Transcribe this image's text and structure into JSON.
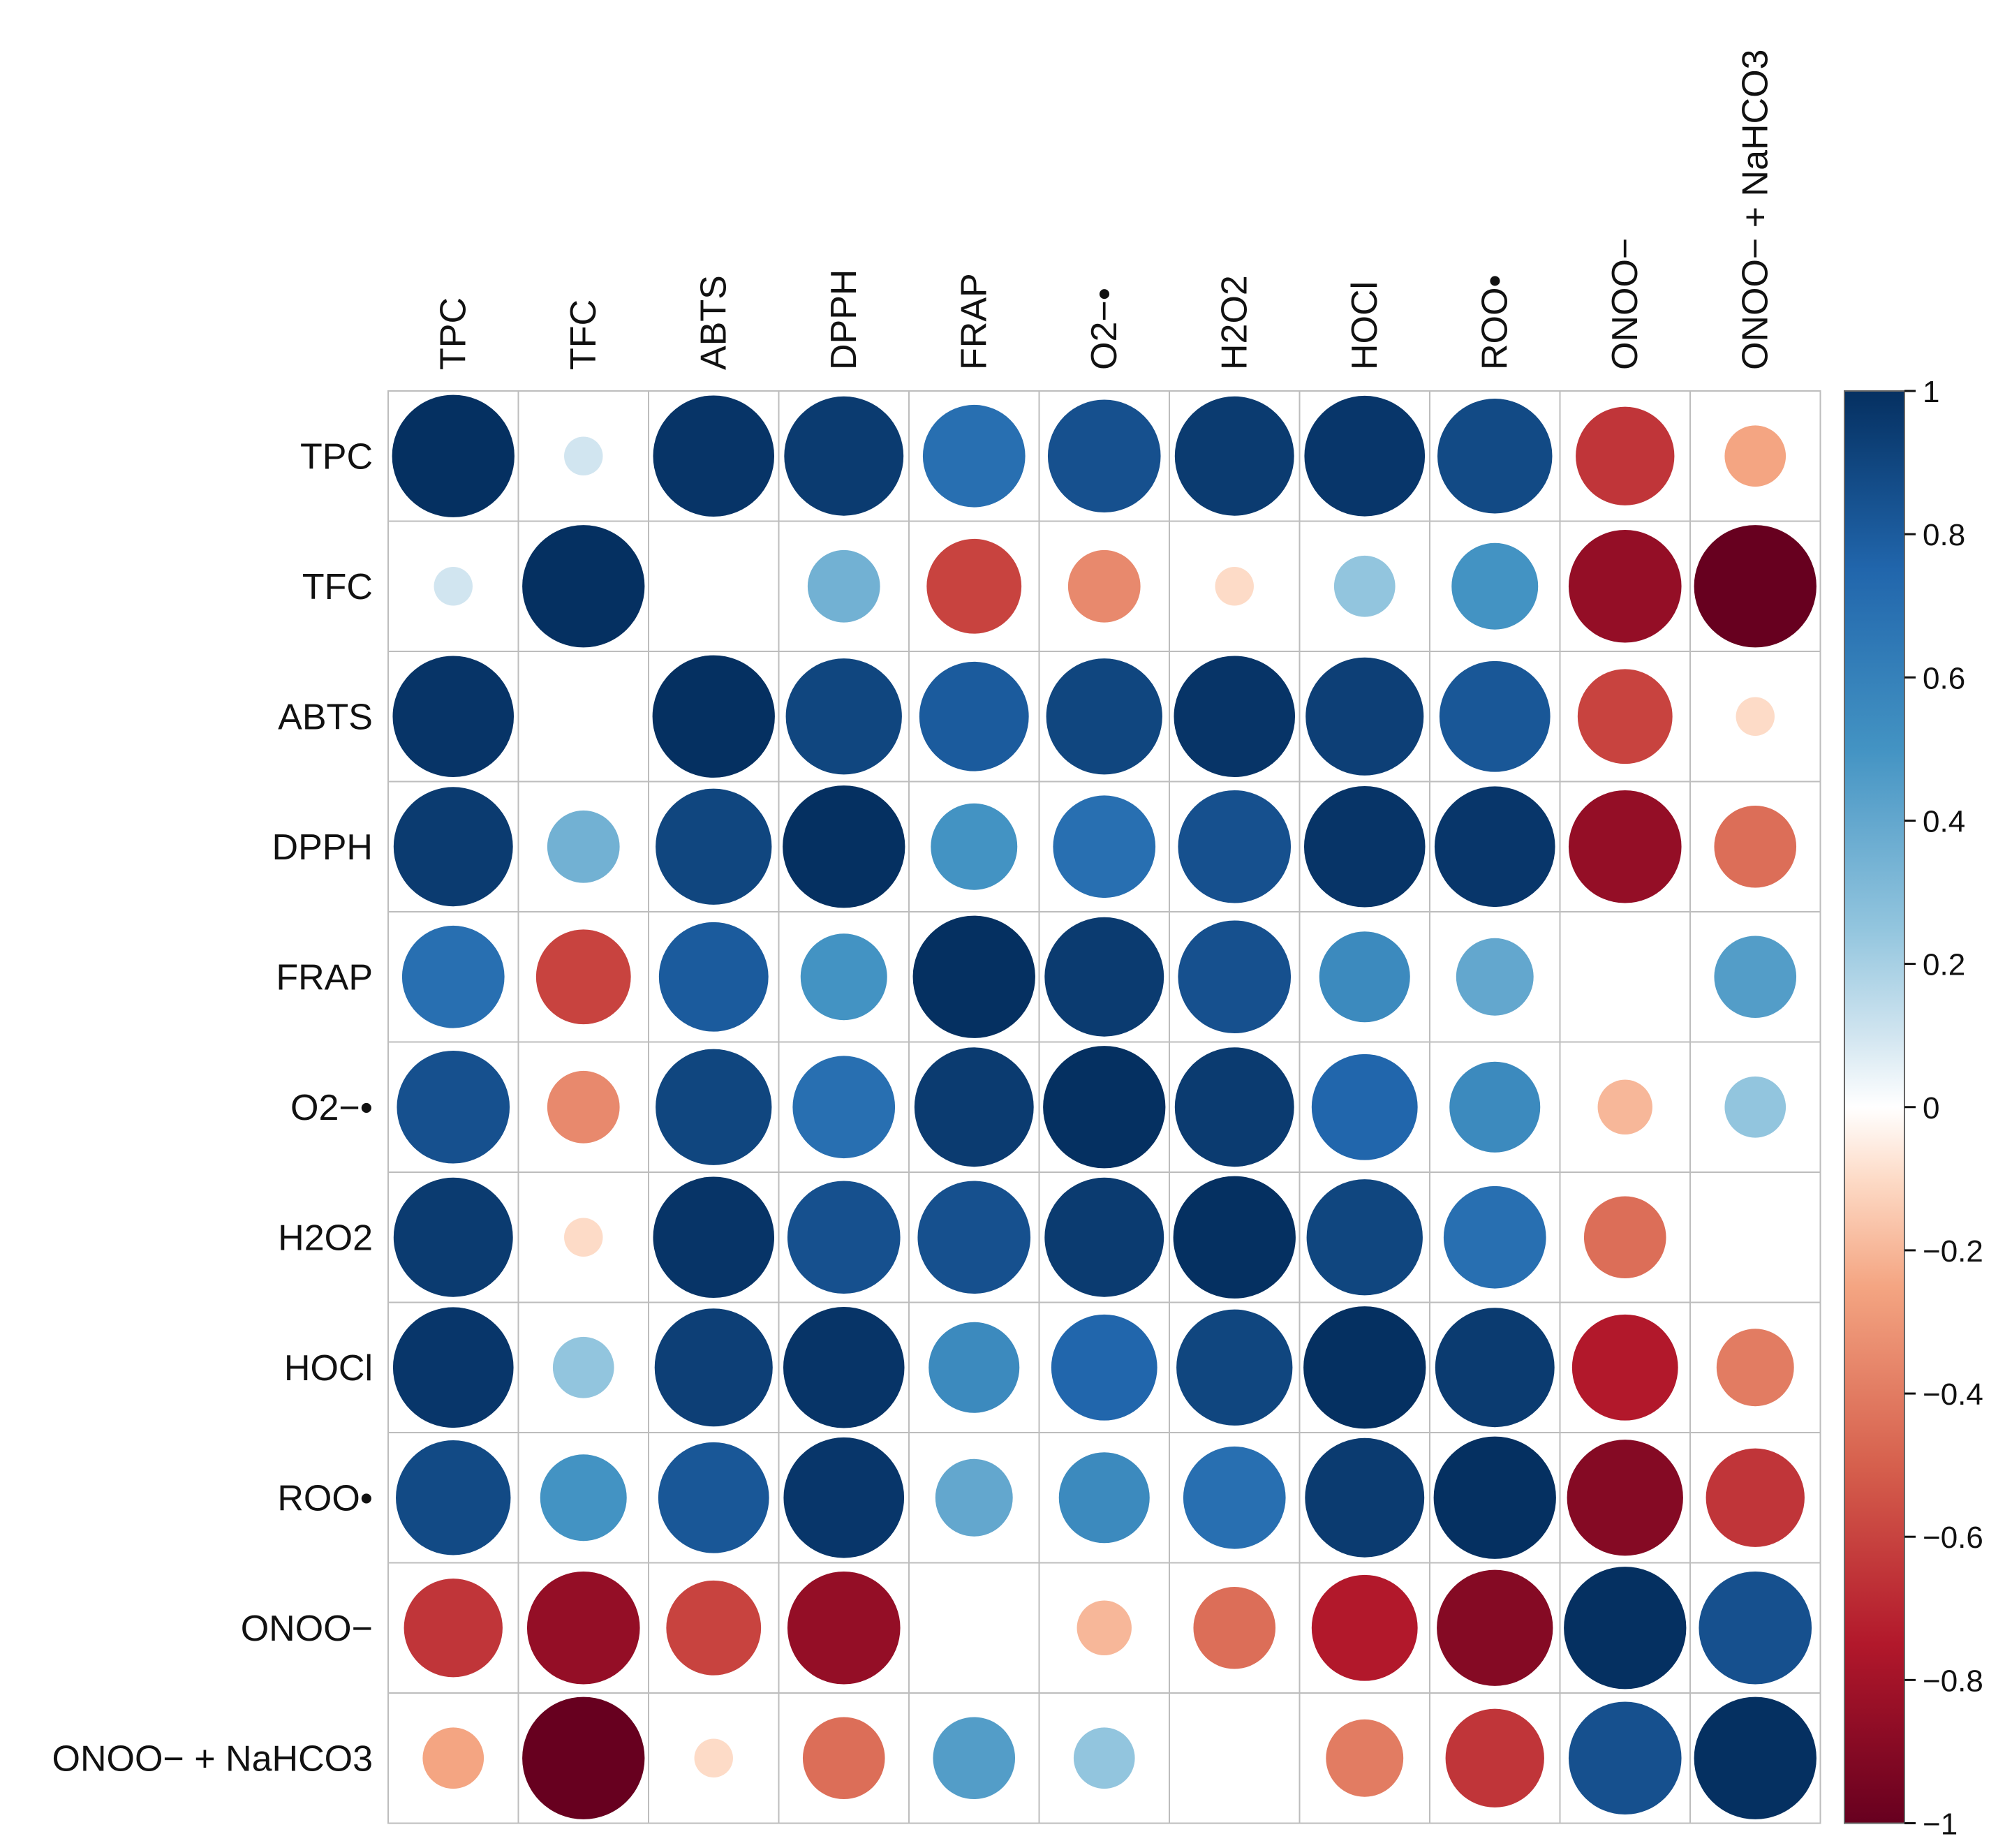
{
  "chart_data": {
    "type": "heatmap",
    "subtype": "correlation-circle-matrix",
    "title": "",
    "variables": [
      "TPC",
      "TFC",
      "ABTS",
      "DPPH",
      "FRAP",
      "O2−•",
      "H2O2",
      "HOCl",
      "ROO•",
      "ONOO−",
      "ONOO− + NaHCO3"
    ],
    "matrix": [
      [
        1.0,
        0.1,
        0.98,
        0.95,
        0.7,
        0.85,
        0.95,
        0.97,
        0.88,
        -0.65,
        -0.25
      ],
      [
        0.1,
        1.0,
        0.0,
        0.35,
        -0.6,
        -0.35,
        -0.1,
        0.25,
        0.5,
        -0.85,
        -1.0
      ],
      [
        0.98,
        0.0,
        1.0,
        0.9,
        0.8,
        0.9,
        0.98,
        0.93,
        0.82,
        -0.6,
        -0.1
      ],
      [
        0.95,
        0.35,
        0.9,
        1.0,
        0.5,
        0.7,
        0.85,
        0.98,
        0.97,
        -0.85,
        -0.45
      ],
      [
        0.7,
        -0.6,
        0.8,
        0.5,
        1.0,
        0.95,
        0.85,
        0.55,
        0.4,
        0.0,
        0.45
      ],
      [
        0.85,
        -0.35,
        0.9,
        0.7,
        0.95,
        1.0,
        0.95,
        0.75,
        0.55,
        -0.2,
        0.25
      ],
      [
        0.95,
        -0.1,
        0.98,
        0.85,
        0.85,
        0.95,
        1.0,
        0.9,
        0.7,
        -0.45,
        0.0
      ],
      [
        0.97,
        0.25,
        0.93,
        0.98,
        0.55,
        0.75,
        0.9,
        1.0,
        0.95,
        -0.75,
        -0.4
      ],
      [
        0.88,
        0.5,
        0.82,
        0.97,
        0.4,
        0.55,
        0.7,
        0.95,
        1.0,
        -0.9,
        -0.65
      ],
      [
        -0.65,
        -0.85,
        -0.6,
        -0.85,
        0.0,
        -0.2,
        -0.45,
        -0.75,
        -0.9,
        1.0,
        0.85
      ],
      [
        -0.25,
        -1.0,
        -0.1,
        -0.45,
        0.45,
        0.25,
        0.0,
        -0.4,
        -0.65,
        0.85,
        1.0
      ]
    ],
    "colorbar": {
      "range": [
        -1,
        1
      ],
      "ticks": [
        1,
        0.8,
        0.6,
        0.4,
        0.2,
        0,
        -0.2,
        -0.4,
        -0.6,
        -0.8,
        -1
      ],
      "tick_labels": [
        "1",
        "0.8",
        "0.6",
        "0.4",
        "0.2",
        "0",
        "−0.2",
        "−0.4",
        "−0.6",
        "−0.8",
        "−1"
      ]
    },
    "colors": {
      "negative_end": "#67001f",
      "neutral": "#ffffff",
      "positive_end": "#053061",
      "grid": "#bdbdbd"
    },
    "legend_position": "right"
  }
}
